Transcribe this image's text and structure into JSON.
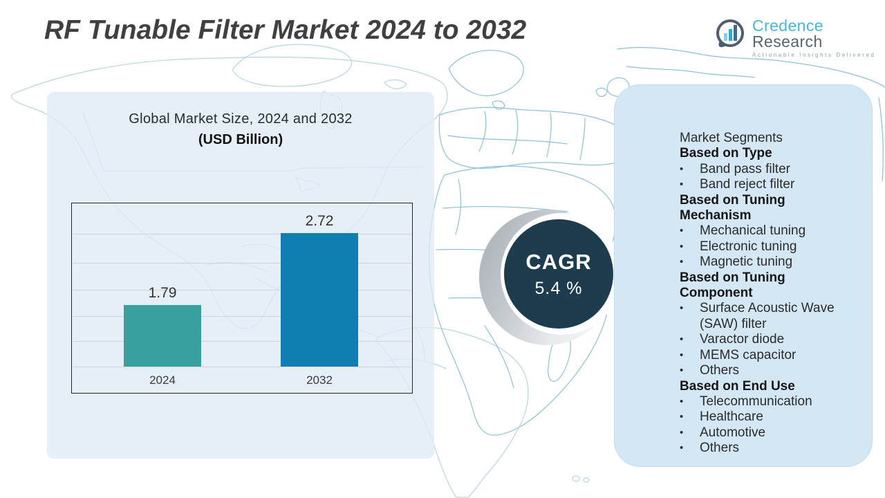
{
  "header": {
    "title": "RF Tunable Filter Market 2024 to 2032"
  },
  "logo": {
    "brand_primary": "Credence",
    "brand_secondary": "Research",
    "tagline": "Actionable Insights Delivered",
    "icon": "bar-chart-speech-bubble-icon",
    "brand_primary_color": "#45b8d8",
    "brand_secondary_color": "#58646e"
  },
  "chart_panel": {
    "title_line1": "Global Market Size, 2024 and 2032",
    "title_line2": "(USD Billion)"
  },
  "chart_data": {
    "type": "bar",
    "categories": [
      "2024",
      "2032"
    ],
    "values": [
      1.79,
      2.72
    ],
    "value_labels": [
      "1.79",
      "2.72"
    ],
    "title": "Global Market Size, 2024 and 2032",
    "subtitle": "(USD Billion)",
    "xlabel": "",
    "ylabel": "",
    "ylim": [
      1.0,
      3.1
    ],
    "grid": true,
    "gridline_count": 6,
    "legend": "none",
    "bar_colors": [
      "#38a19f",
      "#0f7fb1"
    ]
  },
  "cagr_badge": {
    "label": "CAGR",
    "value": "5.4 %",
    "circle_color": "#1d3c4d"
  },
  "segments_card": {
    "title": "Market Segments",
    "bullet_char": "•",
    "groups": [
      {
        "heading": "Based on Type",
        "items": [
          "Band pass filter",
          "Band reject filter"
        ]
      },
      {
        "heading": "Based on Tuning Mechanism",
        "items": [
          "Mechanical tuning",
          "Electronic tuning",
          "Magnetic tuning"
        ]
      },
      {
        "heading": "Based on Tuning Component",
        "items": [
          "Surface Acoustic Wave (SAW) filter",
          "Varactor diode",
          "MEMS capacitor",
          "Others"
        ]
      },
      {
        "heading": "Based on End Use",
        "items": [
          "Telecommunication",
          "Healthcare",
          "Automotive",
          "Others"
        ]
      }
    ]
  },
  "colors": {
    "bar_2024": "#38a19f",
    "bar_2032": "#0f7fb1",
    "cagr_circle": "#1d3c4d",
    "card_bg": "#d3e7f4",
    "panel_bg": "#dfebf5",
    "map_stroke_light": "#b7d3e3",
    "map_stroke_strong": "#8cc0d8",
    "title_text": "#3e4042"
  }
}
